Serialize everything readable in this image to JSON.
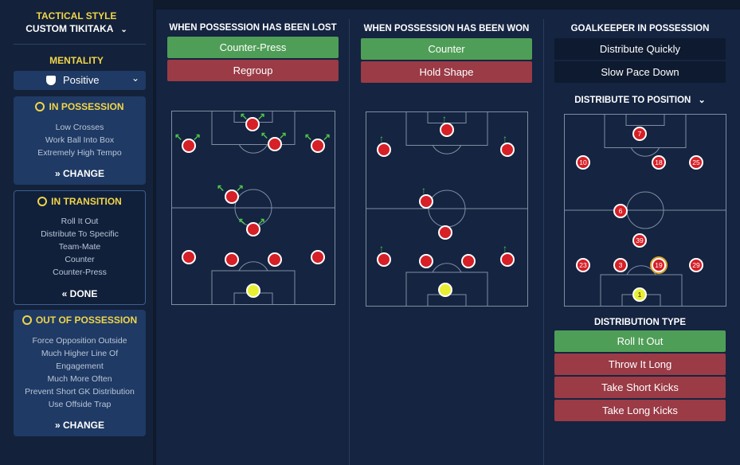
{
  "sidebar": {
    "tactical_style_label": "TACTICAL STYLE",
    "style_name": "CUSTOM TIKITAKA",
    "mentality_label": "MENTALITY",
    "mentality_value": "Positive",
    "in_possession": {
      "title": "IN POSSESSION",
      "lines": [
        "Low Crosses",
        "Work Ball Into Box",
        "Extremely High Tempo"
      ],
      "action": "CHANGE"
    },
    "in_transition": {
      "title": "IN TRANSITION",
      "lines": [
        "Roll It Out",
        "Distribute To Specific",
        "Team-Mate",
        "Counter",
        "Counter-Press"
      ],
      "action": "DONE"
    },
    "out_of_possession": {
      "title": "OUT OF POSSESSION",
      "lines": [
        "Force Opposition Outside",
        "Much Higher Line Of",
        "Engagement",
        "Much More Often",
        "Prevent Short GK Distribution",
        "Use Offside Trap"
      ],
      "action": "CHANGE"
    }
  },
  "lost": {
    "title": "WHEN POSSESSION HAS BEEN LOST",
    "options": [
      {
        "label": "Counter-Press",
        "selected": true
      },
      {
        "label": "Regroup",
        "selected": false
      }
    ]
  },
  "won": {
    "title": "WHEN POSSESSION HAS BEEN WON",
    "options": [
      {
        "label": "Counter",
        "selected": true
      },
      {
        "label": "Hold Shape",
        "selected": false
      }
    ]
  },
  "gk": {
    "title": "GOALKEEPER IN POSSESSION",
    "options": [
      "Distribute Quickly",
      "Slow Pace Down"
    ],
    "distribute_label": "DISTRIBUTE TO POSITION",
    "distribution_type_label": "DISTRIBUTION TYPE",
    "distribution_types": [
      {
        "label": "Roll It Out",
        "selected": true
      },
      {
        "label": "Throw It Long",
        "selected": false
      },
      {
        "label": "Take Short Kicks",
        "selected": false
      },
      {
        "label": "Take Long Kicks",
        "selected": false
      }
    ],
    "player_numbers": [
      "7",
      "10",
      "18",
      "25",
      "6",
      "39",
      "23",
      "3",
      "19",
      "29",
      "1"
    ],
    "selected_player": "19"
  },
  "colors": {
    "accent_yellow": "#f1d54a",
    "selected_green": "#4f9e57",
    "unselected_red": "#9a3b46",
    "player_red": "#d61f26",
    "goalkeeper_yellow": "#e8ef33"
  }
}
